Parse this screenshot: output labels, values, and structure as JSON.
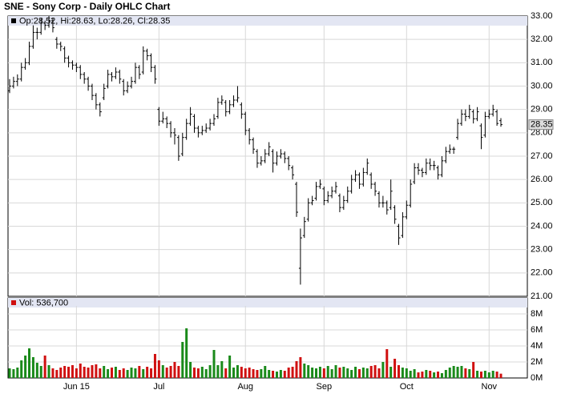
{
  "chart_data": {
    "type": "ohlc",
    "title": "SNE - Sony Corp - Daily OHLC Chart",
    "price_legend": "Op:28.52, Hi:28.63, Lo:28.26, Cl:28.35",
    "volume_legend": "Vol: 536,700",
    "last_price": 28.35,
    "categories": [
      null,
      null,
      null,
      null,
      null,
      null,
      null,
      null,
      null,
      null,
      null,
      null,
      null,
      null,
      null,
      null,
      null,
      "Jun 15",
      null,
      null,
      null,
      null,
      null,
      null,
      null,
      null,
      null,
      null,
      null,
      null,
      null,
      null,
      null,
      null,
      null,
      null,
      null,
      null,
      "Jul",
      null,
      null,
      null,
      null,
      null,
      null,
      null,
      null,
      null,
      null,
      null,
      null,
      null,
      null,
      null,
      null,
      null,
      null,
      null,
      null,
      null,
      "Aug",
      null,
      null,
      null,
      null,
      null,
      null,
      null,
      null,
      null,
      null,
      null,
      null,
      null,
      null,
      null,
      null,
      null,
      null,
      null,
      "Sep",
      null,
      null,
      null,
      null,
      null,
      null,
      null,
      null,
      null,
      null,
      null,
      null,
      null,
      null,
      null,
      null,
      null,
      null,
      null,
      null,
      "Oct",
      null,
      null,
      null,
      null,
      null,
      null,
      null,
      null,
      null,
      null,
      null,
      null,
      null,
      null,
      null,
      null,
      null,
      null,
      null,
      null,
      "Nov",
      null,
      null,
      null
    ],
    "open": [
      29.8,
      30.0,
      30.2,
      30.3,
      30.8,
      31.0,
      31.7,
      32.3,
      32.3,
      32.7,
      32.6,
      32.8,
      32.0,
      31.8,
      31.6,
      31.2,
      31.0,
      30.9,
      30.8,
      30.5,
      30.3,
      30.0,
      29.6,
      29.2,
      29.5,
      30.0,
      30.5,
      30.4,
      30.6,
      30.2,
      29.8,
      30.0,
      30.2,
      30.8,
      30.6,
      31.5,
      31.3,
      30.8,
      29.0,
      28.5,
      28.6,
      28.4,
      28.0,
      27.8,
      27.1,
      27.8,
      28.4,
      28.7,
      28.2,
      28.0,
      28.1,
      28.2,
      28.4,
      28.7,
      29.3,
      29.3,
      28.9,
      29.2,
      29.4,
      29.2,
      28.8,
      28.1,
      27.7,
      27.2,
      26.7,
      26.8,
      27.1,
      27.2,
      26.7,
      27.0,
      27.1,
      26.9,
      26.5,
      25.8,
      22.2,
      23.6,
      24.3,
      25.0,
      25.2,
      25.7,
      25.6,
      25.1,
      25.3,
      25.5,
      25.3,
      24.8,
      25.1,
      25.5,
      26.0,
      26.2,
      25.8,
      26.3,
      26.2,
      25.8,
      25.4,
      25.0,
      25.0,
      24.8,
      24.8,
      24.0,
      23.6,
      24.4,
      24.9,
      25.9,
      26.5,
      26.4,
      26.3,
      26.7,
      26.6,
      26.5,
      26.2,
      26.8,
      27.2,
      27.3,
      27.8,
      28.4,
      28.8,
      28.7,
      28.9,
      28.6,
      28.3,
      27.9,
      28.7,
      28.8,
      28.9,
      28.52
    ],
    "high": [
      30.3,
      30.4,
      30.5,
      31.0,
      31.2,
      31.9,
      32.6,
      32.5,
      32.9,
      32.8,
      33.0,
      32.9,
      32.1,
      31.9,
      31.7,
      31.3,
      31.1,
      31.0,
      30.9,
      30.6,
      30.4,
      30.1,
      29.7,
      29.3,
      30.1,
      30.7,
      30.6,
      30.8,
      30.7,
      30.3,
      30.2,
      30.4,
      31.0,
      30.9,
      31.7,
      31.6,
      31.4,
      30.9,
      29.1,
      28.9,
      28.7,
      28.5,
      28.2,
      27.9,
      28.0,
      28.6,
      29.1,
      28.8,
      28.3,
      28.3,
      28.4,
      28.6,
      28.8,
      29.5,
      29.6,
      29.4,
      29.4,
      29.6,
      30.0,
      29.3,
      28.9,
      28.2,
      27.8,
      27.3,
      27.0,
      27.3,
      27.6,
      27.3,
      27.2,
      27.3,
      27.2,
      27.0,
      26.6,
      25.9,
      23.9,
      24.4,
      25.2,
      25.3,
      25.9,
      26.0,
      25.7,
      25.5,
      25.7,
      25.9,
      25.4,
      25.3,
      25.7,
      26.2,
      26.4,
      26.3,
      26.5,
      26.9,
      26.3,
      25.9,
      25.5,
      25.3,
      25.1,
      26.0,
      24.9,
      24.1,
      24.6,
      25.1,
      26.0,
      26.7,
      26.7,
      26.5,
      26.9,
      26.9,
      26.8,
      26.6,
      27.0,
      27.4,
      27.5,
      27.4,
      28.6,
      29.0,
      29.0,
      29.2,
      29.0,
      29.1,
      28.4,
      28.9,
      29.0,
      29.2,
      29.0,
      28.63
    ],
    "low": [
      29.7,
      29.9,
      30.0,
      30.2,
      30.7,
      30.9,
      31.6,
      32.0,
      32.2,
      32.4,
      32.5,
      32.3,
      31.6,
      31.5,
      31.0,
      30.8,
      30.7,
      30.6,
      30.3,
      30.1,
      29.8,
      29.4,
      29.0,
      28.7,
      29.4,
      29.9,
      30.2,
      30.3,
      30.1,
      29.6,
      29.7,
      29.9,
      30.1,
      30.3,
      30.5,
      31.1,
      30.6,
      30.1,
      28.3,
      28.4,
      28.2,
      27.8,
      27.5,
      26.8,
      27.0,
      27.7,
      28.3,
      28.0,
      27.8,
      27.9,
      28.0,
      28.1,
      28.3,
      28.6,
      29.2,
      28.7,
      28.8,
      29.1,
      29.3,
      28.6,
      27.9,
      27.5,
      27.1,
      26.5,
      26.6,
      26.7,
      27.0,
      26.3,
      26.6,
      26.9,
      26.7,
      26.4,
      26.0,
      24.4,
      21.5,
      23.5,
      24.2,
      24.9,
      25.1,
      25.6,
      24.9,
      25.0,
      25.2,
      25.4,
      24.6,
      24.7,
      25.0,
      25.4,
      25.9,
      25.6,
      25.7,
      26.2,
      25.6,
      25.3,
      24.8,
      24.8,
      24.5,
      24.7,
      24.1,
      23.2,
      23.5,
      24.3,
      24.8,
      25.8,
      26.2,
      26.1,
      26.2,
      26.4,
      26.4,
      26.0,
      26.1,
      26.7,
      27.1,
      27.1,
      27.7,
      28.3,
      28.5,
      28.6,
      28.4,
      28.5,
      27.3,
      27.8,
      28.6,
      28.7,
      28.3,
      28.26
    ],
    "close": [
      30.0,
      30.2,
      30.3,
      30.8,
      31.0,
      31.7,
      32.3,
      32.3,
      32.7,
      32.6,
      32.8,
      32.5,
      31.8,
      31.7,
      31.2,
      31.0,
      30.9,
      30.8,
      30.5,
      30.3,
      30.0,
      29.6,
      29.2,
      28.9,
      29.9,
      30.5,
      30.4,
      30.6,
      30.3,
      29.8,
      30.0,
      30.2,
      30.8,
      30.5,
      31.5,
      31.3,
      30.8,
      30.3,
      28.5,
      28.6,
      28.4,
      28.0,
      27.9,
      27.0,
      27.8,
      28.4,
      28.8,
      28.2,
      28.0,
      28.1,
      28.2,
      28.4,
      28.6,
      29.3,
      29.4,
      28.9,
      29.2,
      29.4,
      29.5,
      28.8,
      28.1,
      27.7,
      27.3,
      26.7,
      26.8,
      27.1,
      27.4,
      26.7,
      27.0,
      27.1,
      26.9,
      26.6,
      26.2,
      24.6,
      23.5,
      24.2,
      25.0,
      25.1,
      25.7,
      25.8,
      25.1,
      25.3,
      25.5,
      25.7,
      24.8,
      25.1,
      25.5,
      26.0,
      26.2,
      25.8,
      26.3,
      26.7,
      25.8,
      25.5,
      25.0,
      25.0,
      24.7,
      25.5,
      24.3,
      23.5,
      24.4,
      24.9,
      25.8,
      26.5,
      26.4,
      26.3,
      26.7,
      26.6,
      26.6,
      26.2,
      26.8,
      27.2,
      27.3,
      27.3,
      28.4,
      28.8,
      28.7,
      29.0,
      28.6,
      28.9,
      27.8,
      28.7,
      28.8,
      29.0,
      28.4,
      28.35
    ],
    "volume": [
      1.2,
      1.1,
      1.3,
      2.2,
      2.8,
      3.7,
      2.6,
      1.9,
      1.5,
      2.8,
      1.6,
      1.2,
      1.0,
      1.3,
      1.5,
      1.4,
      1.6,
      1.2,
      1.8,
      1.4,
      1.3,
      1.6,
      1.7,
      1.2,
      1.5,
      1.1,
      1.3,
      1.4,
      1.0,
      1.2,
      1.0,
      1.3,
      1.2,
      1.5,
      1.1,
      1.4,
      1.2,
      3.0,
      2.2,
      1.6,
      1.3,
      1.5,
      2.0,
      1.5,
      4.5,
      6.2,
      2.0,
      1.3,
      1.2,
      1.4,
      1.1,
      1.6,
      3.5,
      1.6,
      2.1,
      1.2,
      2.8,
      1.3,
      1.6,
      1.4,
      1.2,
      1.3,
      1.1,
      1.0,
      1.1,
      1.5,
      1.0,
      0.9,
      0.8,
      1.0,
      0.9,
      1.3,
      1.4,
      2.1,
      2.6,
      1.8,
      1.6,
      1.3,
      1.2,
      1.4,
      1.2,
      1.5,
      1.1,
      1.6,
      1.3,
      1.4,
      1.2,
      1.0,
      1.4,
      1.1,
      1.3,
      1.2,
      1.5,
      1.6,
      1.2,
      2.0,
      3.6,
      1.4,
      2.4,
      1.6,
      1.3,
      1.2,
      0.9,
      1.1,
      0.7,
      0.8,
      1.0,
      0.9,
      0.7,
      0.8,
      0.6,
      1.0,
      1.3,
      1.5,
      1.4,
      1.5,
      1.2,
      1.1,
      2.0,
      0.9,
      0.8,
      0.9,
      0.7,
      0.9,
      0.8,
      0.5367
    ],
    "bar_color": "#000000",
    "up_color": "#1a8a1a",
    "down_color": "#d01010",
    "ylim": [
      21,
      33
    ],
    "yticks": [
      {
        "value": 21,
        "label": "21.00"
      },
      {
        "value": 22,
        "label": "22.00"
      },
      {
        "value": 23,
        "label": "23.00"
      },
      {
        "value": 24,
        "label": "24.00"
      },
      {
        "value": 25,
        "label": "25.00"
      },
      {
        "value": 26,
        "label": "26.00"
      },
      {
        "value": 27,
        "label": "27.00"
      },
      {
        "value": 28,
        "label": "28.00"
      },
      {
        "value": 29,
        "label": "29.00"
      },
      {
        "value": 30,
        "label": "30.00"
      },
      {
        "value": 31,
        "label": "31.00"
      },
      {
        "value": 32,
        "label": "32.00"
      },
      {
        "value": 33,
        "label": "33.00"
      }
    ],
    "y2lim": [
      0,
      9
    ],
    "y2ticks": [
      {
        "value": 0,
        "label": "0M"
      },
      {
        "value": 2,
        "label": "2M"
      },
      {
        "value": 4,
        "label": "4M"
      },
      {
        "value": 6,
        "label": "6M"
      },
      {
        "value": 8,
        "label": "8M"
      }
    ],
    "grid": true
  }
}
